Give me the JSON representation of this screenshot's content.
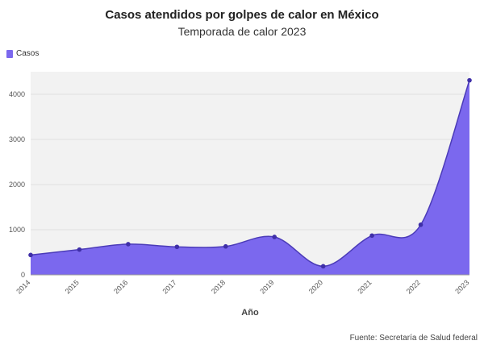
{
  "title": "Casos atendidos por golpes de calor en México",
  "subtitle": "Temporada de calor 2023",
  "source": "Fuente: Secretaría de Salud federal",
  "colors": {
    "area": "#7b68ee",
    "line": "#4b3bb8",
    "point": "#3f2fa8",
    "plot_bg": "#f2f2f2",
    "grid": "#e0e0e0"
  },
  "chart_data": {
    "type": "area",
    "title": "Casos atendidos por golpes de calor en México",
    "subtitle": "Temporada de calor 2023",
    "xlabel": "Año",
    "ylabel": "",
    "categories": [
      "2014",
      "2015",
      "2016",
      "2017",
      "2018",
      "2019",
      "2020",
      "2021",
      "2022",
      "2023"
    ],
    "series": [
      {
        "name": "Casos",
        "values": [
          440,
          560,
          680,
          620,
          630,
          840,
          190,
          870,
          1110,
          4310
        ]
      }
    ],
    "ylim": [
      0,
      4500
    ],
    "yticks": [
      0,
      1000,
      2000,
      3000,
      4000
    ],
    "ytick_labels": [
      "0",
      "1000",
      "2000",
      "3000",
      "4000"
    ],
    "grid": true,
    "legend": "top-left"
  }
}
